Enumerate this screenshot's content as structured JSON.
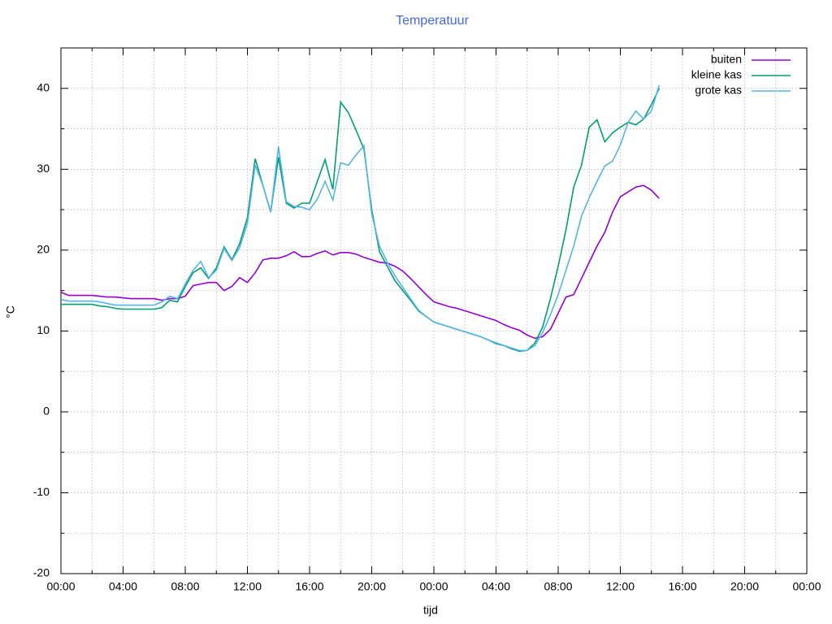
{
  "chart_data": {
    "type": "line",
    "title": "Temperatuur",
    "x_label": "tijd",
    "y_label": "°C",
    "x": [
      0,
      0.5,
      1,
      1.5,
      2,
      2.5,
      3,
      3.5,
      4,
      4.5,
      5,
      5.5,
      6,
      6.5,
      7,
      7.5,
      8,
      8.5,
      9,
      9.5,
      10,
      10.5,
      11,
      11.5,
      12,
      12.5,
      13,
      13.5,
      14,
      14.5,
      15,
      15.5,
      16,
      16.5,
      17,
      17.5,
      18,
      18.5,
      19,
      19.5,
      20,
      20.5,
      21,
      21.5,
      22,
      22.5,
      23,
      23.5,
      24,
      24.5,
      25,
      25.5,
      26,
      26.5,
      27,
      27.5,
      28,
      28.5,
      29,
      29.5,
      30,
      30.5,
      31,
      31.5,
      32,
      32.5,
      33,
      33.5,
      34,
      34.5,
      35,
      35.5,
      36,
      36.5,
      37,
      37.5,
      38,
      38.5
    ],
    "series": [
      {
        "name": "buiten",
        "color": "#9400d3",
        "values": [
          14.8,
          14.4,
          14.4,
          14.4,
          14.4,
          14.3,
          14.2,
          14.2,
          14.1,
          14.0,
          14.0,
          14.0,
          14.0,
          13.8,
          14.0,
          14.0,
          14.3,
          15.6,
          15.8,
          16.0,
          16.0,
          15.0,
          15.5,
          16.6,
          16.0,
          17.2,
          18.8,
          19.0,
          19.0,
          19.3,
          19.8,
          19.2,
          19.2,
          19.6,
          19.9,
          19.4,
          19.7,
          19.7,
          19.5,
          19.1,
          18.8,
          18.5,
          18.4,
          18.0,
          17.4,
          16.5,
          15.5,
          14.5,
          13.6,
          13.3,
          13.0,
          12.8,
          12.5,
          12.2,
          11.9,
          11.6,
          11.3,
          10.8,
          10.4,
          10.1,
          9.5,
          9.1,
          9.3,
          10.2,
          12.2,
          14.2,
          14.5,
          16.5,
          18.5,
          20.5,
          22.2,
          24.7,
          26.6,
          27.2,
          27.8,
          28.0,
          27.4,
          26.4
        ]
      },
      {
        "name": "kleine kas",
        "color": "#009e73",
        "values": [
          13.3,
          13.3,
          13.3,
          13.3,
          13.3,
          13.1,
          13.0,
          12.8,
          12.7,
          12.7,
          12.7,
          12.7,
          12.7,
          12.9,
          13.8,
          13.6,
          15.5,
          17.2,
          17.8,
          16.5,
          17.8,
          20.4,
          18.8,
          20.8,
          24.0,
          31.3,
          28.0,
          24.7,
          31.5,
          25.8,
          25.2,
          25.8,
          25.8,
          28.5,
          31.2,
          27.5,
          38.3,
          37.0,
          34.8,
          32.5,
          25.0,
          19.8,
          18.0,
          16.2,
          15.0,
          13.8,
          12.5,
          11.8,
          11.1,
          10.8,
          10.5,
          10.2,
          9.9,
          9.6,
          9.3,
          8.9,
          8.5,
          8.2,
          7.8,
          7.5,
          7.6,
          8.5,
          10.5,
          14.0,
          18.0,
          22.5,
          27.8,
          30.5,
          35.2,
          36.1,
          33.4,
          34.5,
          35.2,
          35.8,
          35.5,
          36.2,
          38.0,
          40.0
        ]
      },
      {
        "name": "grote kas",
        "color": "#56b4e9",
        "values": [
          13.9,
          13.7,
          13.7,
          13.7,
          13.7,
          13.6,
          13.4,
          13.2,
          13.2,
          13.2,
          13.2,
          13.2,
          13.2,
          13.6,
          14.3,
          14.0,
          15.8,
          17.5,
          18.6,
          16.6,
          17.5,
          20.2,
          18.7,
          20.3,
          23.3,
          30.5,
          28.0,
          24.7,
          32.8,
          26.0,
          25.4,
          25.3,
          25.0,
          26.3,
          28.5,
          26.2,
          30.8,
          30.5,
          31.8,
          32.9,
          24.5,
          20.5,
          18.5,
          16.8,
          15.4,
          14.0,
          12.6,
          11.8,
          11.1,
          10.8,
          10.5,
          10.2,
          9.9,
          9.6,
          9.3,
          8.9,
          8.4,
          8.2,
          7.9,
          7.6,
          7.6,
          8.2,
          9.8,
          12.0,
          14.5,
          17.5,
          20.5,
          24.2,
          26.5,
          28.5,
          30.4,
          31.0,
          33.0,
          35.8,
          37.2,
          36.2,
          37.2,
          40.4
        ]
      }
    ],
    "xlim": [
      0,
      48
    ],
    "xticks": [
      {
        "value": 0,
        "label": "00:00"
      },
      {
        "value": 4,
        "label": "04:00"
      },
      {
        "value": 8,
        "label": "08:00"
      },
      {
        "value": 12,
        "label": "12:00"
      },
      {
        "value": 16,
        "label": "16:00"
      },
      {
        "value": 20,
        "label": "20:00"
      },
      {
        "value": 24,
        "label": "00:00"
      },
      {
        "value": 28,
        "label": "04:00"
      },
      {
        "value": 32,
        "label": "08:00"
      },
      {
        "value": 36,
        "label": "12:00"
      },
      {
        "value": 40,
        "label": "16:00"
      },
      {
        "value": 44,
        "label": "20:00"
      },
      {
        "value": 48,
        "label": "00:00"
      }
    ],
    "xminorticks": [
      2,
      6,
      10,
      14,
      18,
      22,
      26,
      30,
      34,
      38,
      42,
      46
    ],
    "ylim": [
      -20,
      45
    ],
    "yticks": [
      -20,
      -10,
      0,
      10,
      20,
      30,
      40
    ],
    "yminorticks": [
      -15,
      -5,
      5,
      15,
      25,
      35
    ],
    "grid": true,
    "legend": "top-right"
  }
}
